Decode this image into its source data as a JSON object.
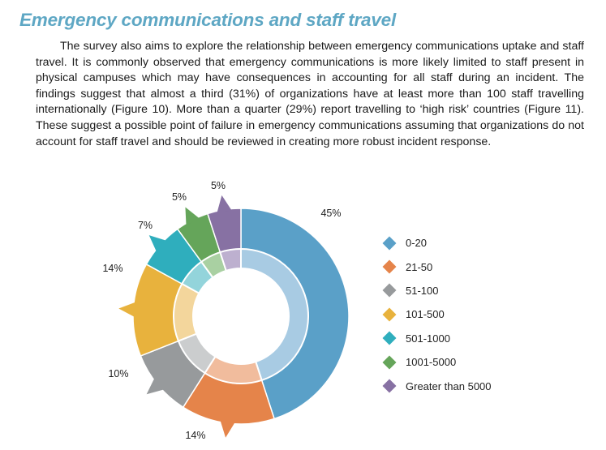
{
  "heading": "Emergency communications and staff travel",
  "paragraph": "The survey also aims to explore the relationship between emergency communications uptake and staff travel. It is commonly observed that emergency communications is more likely limited to staff present in physical campuses which may have consequences in accounting for all staff during an incident. The findings suggest that almost a third (31%) of organizations have at least more than 100 staff travelling internationally (Figure 10). More than a quarter (29%) report travelling to ‘high risk’ countries (Figure 11). These suggest a possible point of failure in emergency communications assuming that organizations do not account for staff travel and should be reviewed in creating more robust incident response.",
  "chart_data": {
    "type": "pie",
    "title": "",
    "categories": [
      "0-20",
      "21-50",
      "51-100",
      "101-500",
      "501-1000",
      "1001-5000",
      "Greater than 5000"
    ],
    "values": [
      45,
      14,
      10,
      14,
      7,
      5,
      5
    ],
    "data_labels": [
      "45%",
      "14%",
      "10%",
      "14%",
      "7%",
      "5%",
      "5%"
    ],
    "colors": [
      "#5aa0c8",
      "#e5844a",
      "#979a9c",
      "#e8b23d",
      "#2faebd",
      "#65a55a",
      "#8771a3"
    ],
    "inner_colors": [
      "#a8cbe3",
      "#f1bc9d",
      "#cbcdce",
      "#f3d69c",
      "#93d4db",
      "#a9d0a2",
      "#bdb0cf"
    ],
    "legend_placement": "right"
  }
}
